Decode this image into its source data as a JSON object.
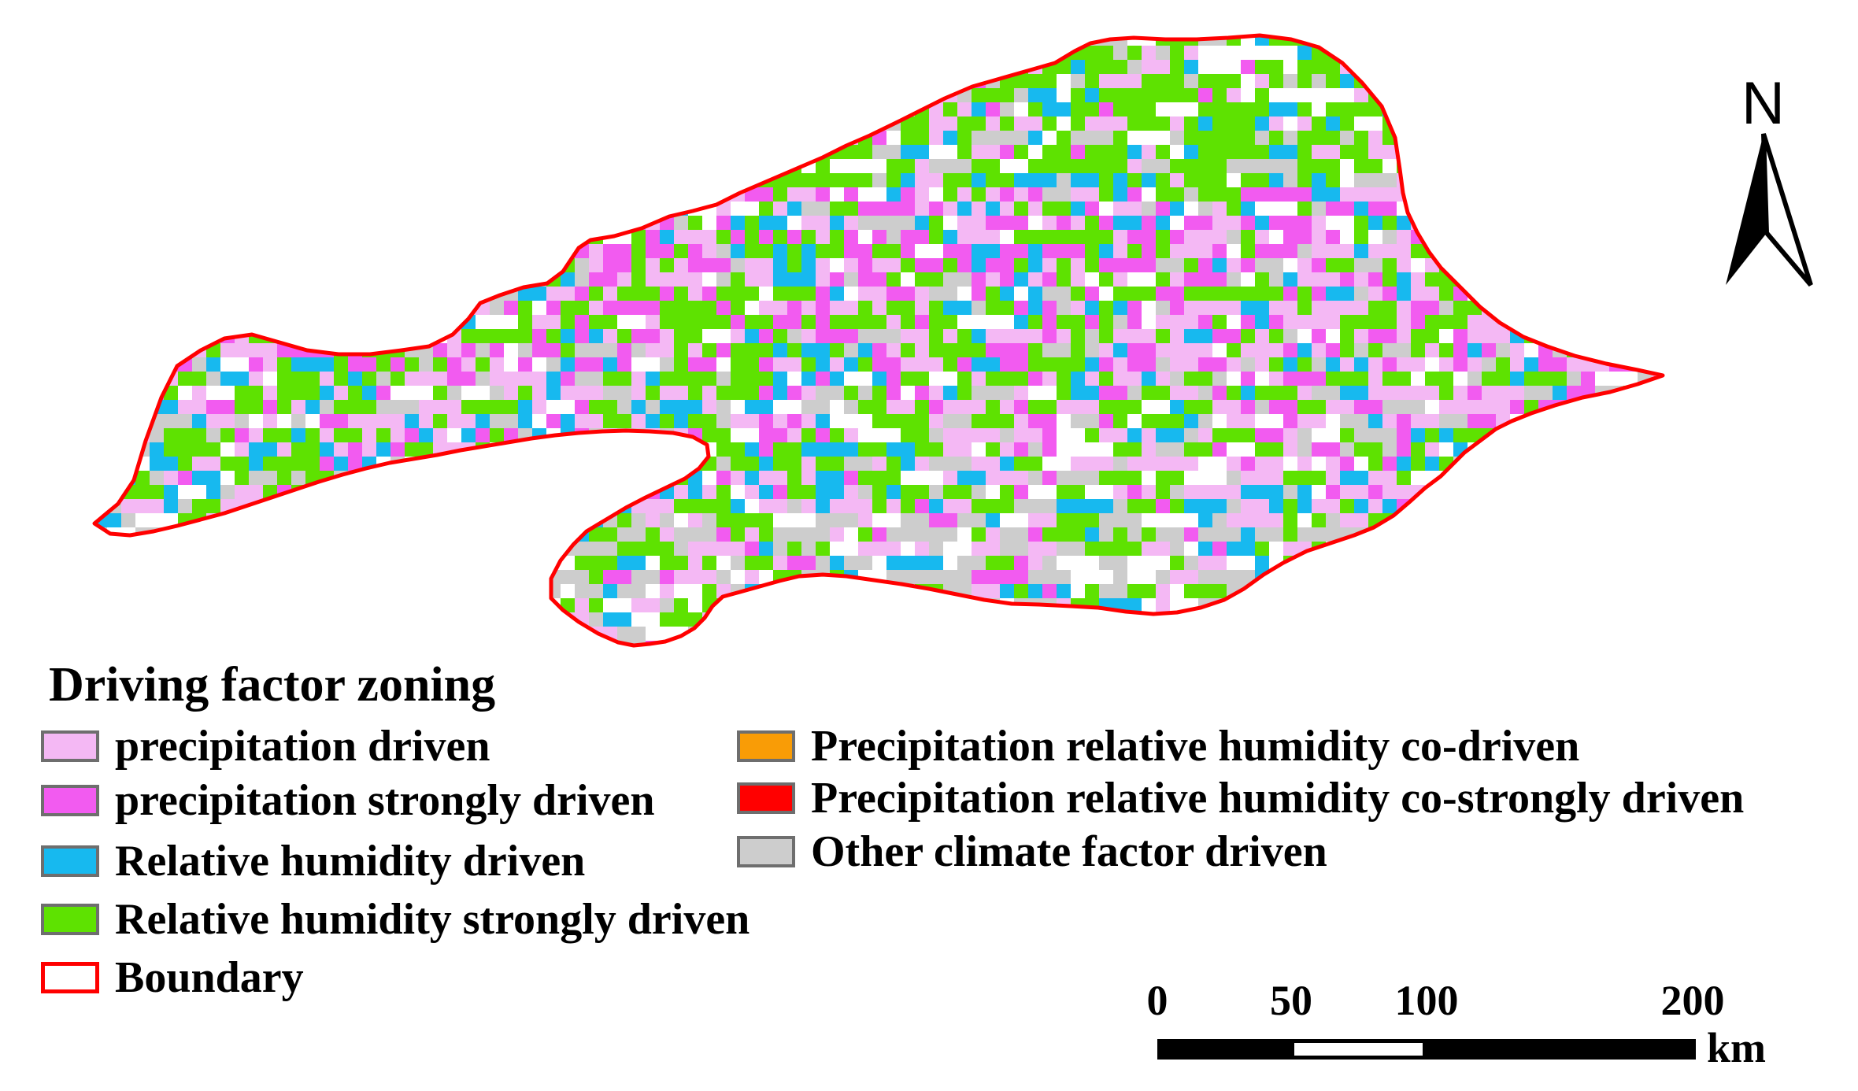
{
  "legend": {
    "title": "Driving factor zoning",
    "items": [
      {
        "key": "precip",
        "label": "precipitation driven",
        "color": "#f4b8f4"
      },
      {
        "key": "precip_strong",
        "label": "precipitation strongly driven",
        "color": "#f25bf0"
      },
      {
        "key": "rh",
        "label": "Relative humidity driven",
        "color": "#17b9ef"
      },
      {
        "key": "rh_strong",
        "label": "Relative humidity strongly driven",
        "color": "#5ee201"
      },
      {
        "key": "co",
        "label": "Precipitation relative humidity co-driven",
        "color": "#f99c06"
      },
      {
        "key": "co_strong",
        "label": "Precipitation relative humidity co-strongly driven",
        "color": "#ff0000"
      },
      {
        "key": "other",
        "label": "Other climate factor driven",
        "color": "#cdcdcd"
      }
    ],
    "boundary": {
      "label": "Boundary",
      "color": "#ff0000"
    }
  },
  "north_arrow": {
    "label": "N",
    "icon": "north-arrow-icon"
  },
  "scale_bar": {
    "ticks": [
      "0",
      "50",
      "100",
      "200"
    ],
    "unit": "km"
  }
}
